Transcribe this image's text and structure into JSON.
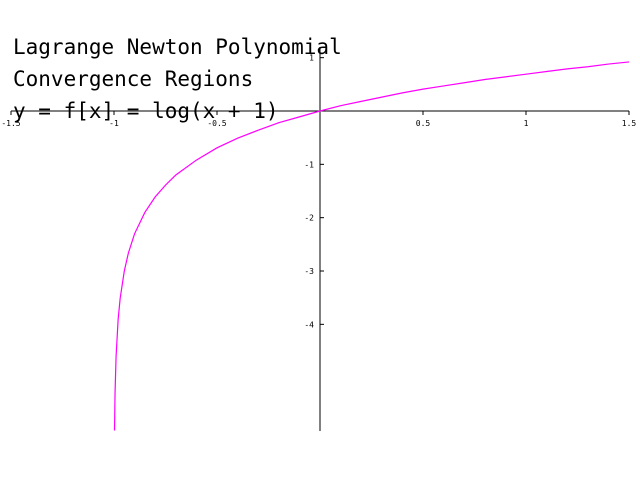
{
  "chart_data": {
    "type": "line",
    "title_lines": [
      "Lagrange Newton Polynomial",
      "Convergence Regions",
      "y = f[x] = log(x + 1)"
    ],
    "xlim": [
      -1.5,
      1.5
    ],
    "ylim": [
      -6.0,
      1.2
    ],
    "x_ticks": [
      -1.5,
      -1,
      -0.5,
      0.5,
      1,
      1.5
    ],
    "x_tick_labels": [
      "-1.5",
      "-1",
      "-0.5",
      "0.5",
      "1",
      "1.5"
    ],
    "y_ticks": [
      1,
      -1,
      -2,
      -3,
      -4
    ],
    "y_tick_labels": [
      "1",
      "-1",
      "-2",
      "-3",
      "-4"
    ],
    "grid": false,
    "series": [
      {
        "color": "#ff00ff",
        "x": [
          -0.9975,
          -0.995,
          -0.99,
          -0.98,
          -0.97,
          -0.95,
          -0.93,
          -0.9,
          -0.85,
          -0.8,
          -0.75,
          -0.7,
          -0.6,
          -0.5,
          -0.4,
          -0.3,
          -0.2,
          -0.1,
          0,
          0.1,
          0.2,
          0.3,
          0.4,
          0.5,
          0.6,
          0.7,
          0.8,
          0.9,
          1.0,
          1.1,
          1.2,
          1.3,
          1.4,
          1.5
        ],
        "y": [
          -5.99,
          -5.3,
          -4.61,
          -3.91,
          -3.51,
          -3.0,
          -2.66,
          -2.3,
          -1.9,
          -1.61,
          -1.39,
          -1.2,
          -0.92,
          -0.69,
          -0.51,
          -0.36,
          -0.22,
          -0.11,
          0.0,
          0.1,
          0.18,
          0.26,
          0.34,
          0.41,
          0.47,
          0.53,
          0.59,
          0.64,
          0.69,
          0.74,
          0.79,
          0.83,
          0.88,
          0.92
        ]
      }
    ]
  }
}
